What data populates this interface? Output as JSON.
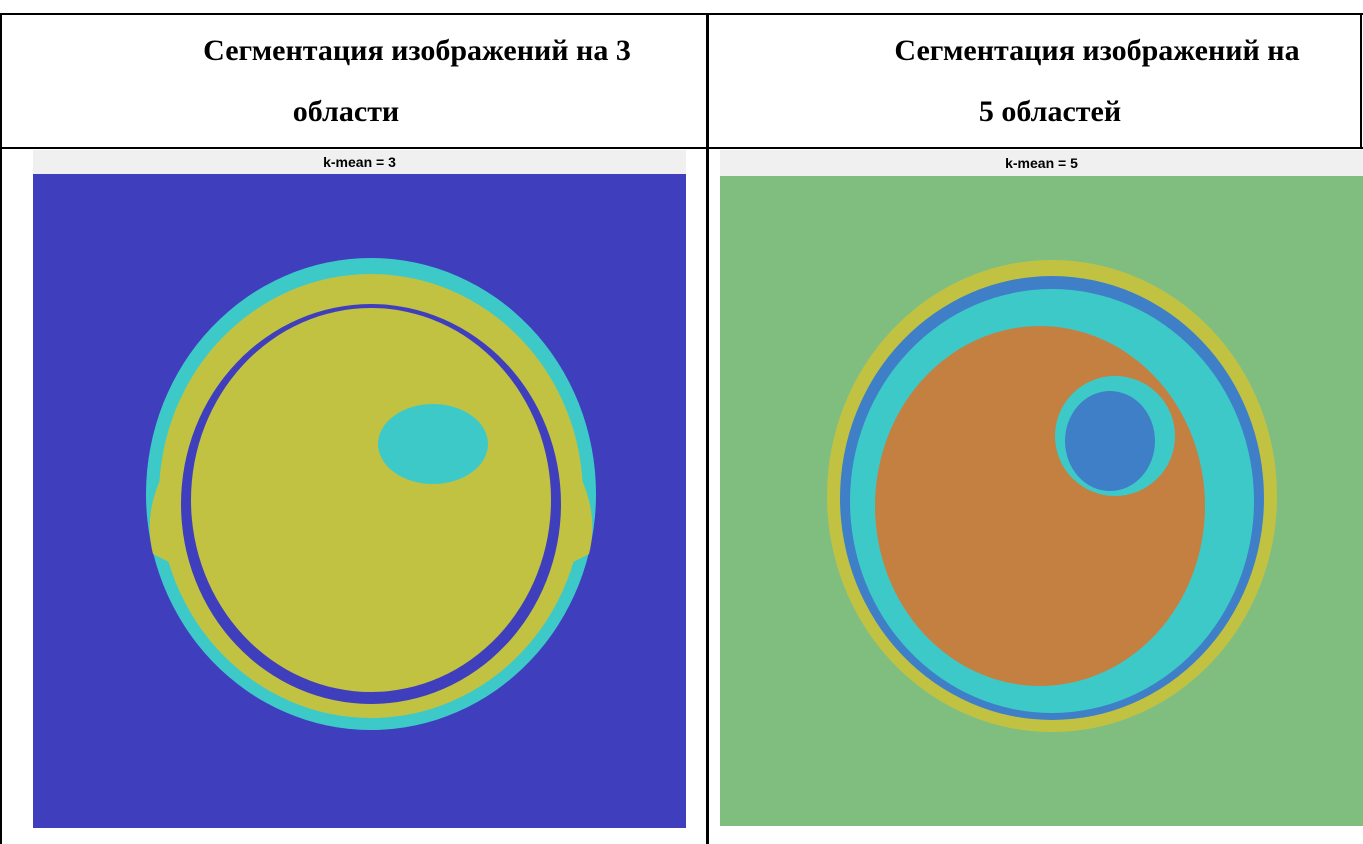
{
  "table": {
    "header": [
      {
        "lines": [
          "Сегментация изображений на 3",
          "области"
        ]
      },
      {
        "lines": [
          "Сегментация изображений на",
          "5 областей"
        ]
      }
    ],
    "cells": [
      {
        "image_title": "k-mean = 3"
      },
      {
        "image_title": "k-mean = 5"
      }
    ]
  }
}
